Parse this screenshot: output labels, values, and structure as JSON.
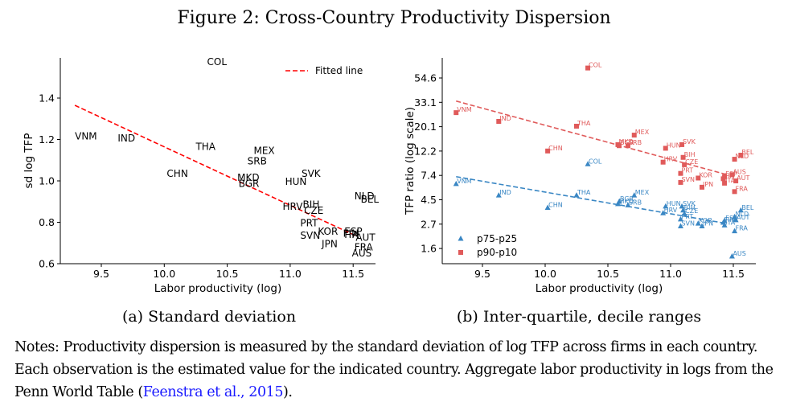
{
  "figure": {
    "title": "Figure 2: Cross-Country Productivity Dispersion",
    "notes_text": "Notes: Productivity dispersion is measured by the standard deviation of log TFP across firms in each country. Each observation is the estimated value for the indicated country. Aggregate labor productivity in logs from the Penn World Table (",
    "notes_link": "Feenstra et al., 2015",
    "notes_end": ")."
  },
  "chart_data": [
    {
      "id": "a",
      "type": "scatter",
      "caption": "(a) Standard deviation",
      "xlabel": "Labor productivity (log)",
      "ylabel": "sd log TFP",
      "xlim": [
        9.18,
        11.68
      ],
      "ylim": [
        0.595,
        1.58
      ],
      "xticks": [
        9.5,
        10.0,
        10.5,
        11.0,
        11.5
      ],
      "xtick_labels": [
        "9.5",
        "10.0",
        "10.5",
        "11.0",
        "11.5"
      ],
      "yticks": [
        0.6,
        0.8,
        1.0,
        1.2,
        1.4
      ],
      "ytick_labels": [
        "0.6",
        "0.8",
        "1.0",
        "1.2",
        "1.4"
      ],
      "grid": false,
      "legend": {
        "position": "top-right",
        "entries": [
          {
            "label": "Fitted line",
            "color": "#ff0000",
            "style": "dashed"
          }
        ]
      },
      "fitted_line": {
        "x": [
          9.29,
          11.52
        ],
        "y": [
          1.365,
          0.735
        ],
        "color": "#ff0000"
      },
      "points": [
        {
          "label": "VNM",
          "x": 9.29,
          "y": 1.2
        },
        {
          "label": "IND",
          "x": 9.63,
          "y": 1.19
        },
        {
          "label": "CHN",
          "x": 10.02,
          "y": 1.02
        },
        {
          "label": "THA",
          "x": 10.25,
          "y": 1.15
        },
        {
          "label": "COL",
          "x": 10.34,
          "y": 1.56
        },
        {
          "label": "MKD",
          "x": 10.58,
          "y": 1.0
        },
        {
          "label": "BGR",
          "x": 10.59,
          "y": 0.97
        },
        {
          "label": "SRB",
          "x": 10.66,
          "y": 1.08
        },
        {
          "label": "MEX",
          "x": 10.71,
          "y": 1.13
        },
        {
          "label": "HRV",
          "x": 10.94,
          "y": 0.86
        },
        {
          "label": "HUN",
          "x": 10.96,
          "y": 0.98
        },
        {
          "label": "SVK",
          "x": 11.09,
          "y": 1.02
        },
        {
          "label": "BIH",
          "x": 11.1,
          "y": 0.87
        },
        {
          "label": "CZE",
          "x": 11.11,
          "y": 0.84
        },
        {
          "label": "PRT",
          "x": 11.08,
          "y": 0.78
        },
        {
          "label": "SVN",
          "x": 11.08,
          "y": 0.72
        },
        {
          "label": "KOR",
          "x": 11.22,
          "y": 0.74
        },
        {
          "label": "JPN",
          "x": 11.25,
          "y": 0.68
        },
        {
          "label": "ESP",
          "x": 11.43,
          "y": 0.74
        },
        {
          "label": "FIN",
          "x": 11.42,
          "y": 0.73
        },
        {
          "label": "ITA",
          "x": 11.43,
          "y": 0.725
        },
        {
          "label": "AUT",
          "x": 11.52,
          "y": 0.71
        },
        {
          "label": "FRA",
          "x": 11.51,
          "y": 0.665
        },
        {
          "label": "AUS",
          "x": 11.49,
          "y": 0.635
        },
        {
          "label": "NLD",
          "x": 11.51,
          "y": 0.91
        },
        {
          "label": "BEL",
          "x": 11.56,
          "y": 0.895
        }
      ]
    },
    {
      "id": "b",
      "type": "scatter",
      "caption": "(b) Inter-quartile, decile ranges",
      "xlabel": "Labor productivity (log)",
      "ylabel": "TFP ratio (log scale)",
      "yscale": "log",
      "xlim": [
        9.18,
        11.68
      ],
      "ylim": [
        1.2,
        82
      ],
      "xticks": [
        9.5,
        10.0,
        10.5,
        11.0,
        11.5
      ],
      "xtick_labels": [
        "9.5",
        "10.0",
        "10.5",
        "11.0",
        "11.5"
      ],
      "yticks": [
        1.6,
        2.7,
        4.5,
        7.4,
        12.2,
        20.1,
        33.1,
        54.6
      ],
      "ytick_labels": [
        "1.6",
        "2.7",
        "4.5",
        "7.4",
        "12.2",
        "20.1",
        "33.1",
        "54.6"
      ],
      "grid": false,
      "legend": {
        "position": "bottom-left",
        "entries": [
          {
            "label": "p75-p25",
            "color": "#3a87c4",
            "marker": "triangle"
          },
          {
            "label": "p90-p10",
            "color": "#e05a5a",
            "marker": "square"
          }
        ]
      },
      "series": [
        {
          "name": "p75-p25",
          "color": "#3a87c4",
          "marker": "triangle",
          "fitted_line": {
            "x": [
              9.29,
              11.45
            ],
            "y": [
              7.2,
              2.75
            ]
          },
          "points": [
            {
              "label": "VNM",
              "x": 9.29,
              "y": 6.2
            },
            {
              "label": "IND",
              "x": 9.63,
              "y": 4.9
            },
            {
              "label": "CHN",
              "x": 10.02,
              "y": 3.8
            },
            {
              "label": "THA",
              "x": 10.25,
              "y": 4.9
            },
            {
              "label": "COL",
              "x": 10.34,
              "y": 9.3
            },
            {
              "label": "BGR",
              "x": 10.59,
              "y": 4.3
            },
            {
              "label": "MKD",
              "x": 10.58,
              "y": 4.1
            },
            {
              "label": "SRB",
              "x": 10.66,
              "y": 4.0
            },
            {
              "label": "MEX",
              "x": 10.71,
              "y": 4.9
            },
            {
              "label": "HRV",
              "x": 10.94,
              "y": 3.4
            },
            {
              "label": "HUN",
              "x": 10.96,
              "y": 3.9
            },
            {
              "label": "SVK",
              "x": 11.09,
              "y": 3.9
            },
            {
              "label": "BIH",
              "x": 11.1,
              "y": 3.6
            },
            {
              "label": "CZE",
              "x": 11.11,
              "y": 3.35
            },
            {
              "label": "PRT",
              "x": 11.08,
              "y": 3.0
            },
            {
              "label": "SVN",
              "x": 11.08,
              "y": 2.6
            },
            {
              "label": "KOR",
              "x": 11.22,
              "y": 2.75
            },
            {
              "label": "JPN",
              "x": 11.25,
              "y": 2.6
            },
            {
              "label": "ESP",
              "x": 11.43,
              "y": 2.9
            },
            {
              "label": "FIN",
              "x": 11.42,
              "y": 2.8
            },
            {
              "label": "ITA",
              "x": 11.43,
              "y": 2.65
            },
            {
              "label": "AUT",
              "x": 11.52,
              "y": 2.95
            },
            {
              "label": "NLD",
              "x": 11.51,
              "y": 3.15
            },
            {
              "label": "BEL",
              "x": 11.56,
              "y": 3.6
            },
            {
              "label": "FRA",
              "x": 11.51,
              "y": 2.35
            },
            {
              "label": "AUS",
              "x": 11.49,
              "y": 1.4
            }
          ]
        },
        {
          "name": "p90-p10",
          "color": "#e05a5a",
          "marker": "square",
          "fitted_line": {
            "x": [
              9.29,
              11.45
            ],
            "y": [
              34.0,
              7.5
            ]
          },
          "points": [
            {
              "label": "VNM",
              "x": 9.29,
              "y": 26.8
            },
            {
              "label": "IND",
              "x": 9.63,
              "y": 22.4
            },
            {
              "label": "CHN",
              "x": 10.02,
              "y": 12.2
            },
            {
              "label": "THA",
              "x": 10.25,
              "y": 20.3
            },
            {
              "label": "COL",
              "x": 10.34,
              "y": 67.0
            },
            {
              "label": "MKD",
              "x": 10.58,
              "y": 13.9
            },
            {
              "label": "BGR",
              "x": 10.59,
              "y": 13.6
            },
            {
              "label": "SRB",
              "x": 10.66,
              "y": 13.6
            },
            {
              "label": "MEX",
              "x": 10.71,
              "y": 16.9
            },
            {
              "label": "HRV",
              "x": 10.94,
              "y": 9.7
            },
            {
              "label": "HUN",
              "x": 10.96,
              "y": 12.9
            },
            {
              "label": "SVK",
              "x": 11.09,
              "y": 13.9
            },
            {
              "label": "BIH",
              "x": 11.1,
              "y": 10.7
            },
            {
              "label": "CZE",
              "x": 11.11,
              "y": 9.2
            },
            {
              "label": "PRT",
              "x": 11.08,
              "y": 7.7
            },
            {
              "label": "SVN",
              "x": 11.08,
              "y": 6.4
            },
            {
              "label": "KOR",
              "x": 11.22,
              "y": 7.0
            },
            {
              "label": "JPN",
              "x": 11.25,
              "y": 5.8
            },
            {
              "label": "ESP",
              "x": 11.43,
              "y": 7.2
            },
            {
              "label": "FIN",
              "x": 11.42,
              "y": 6.9
            },
            {
              "label": "ITA",
              "x": 11.43,
              "y": 6.3
            },
            {
              "label": "AUS",
              "x": 11.49,
              "y": 7.5
            },
            {
              "label": "AUT",
              "x": 11.52,
              "y": 6.6
            },
            {
              "label": "FRA",
              "x": 11.51,
              "y": 5.3
            },
            {
              "label": "NLD",
              "x": 11.51,
              "y": 10.3
            },
            {
              "label": "BEL",
              "x": 11.56,
              "y": 11.2
            }
          ]
        }
      ]
    }
  ]
}
